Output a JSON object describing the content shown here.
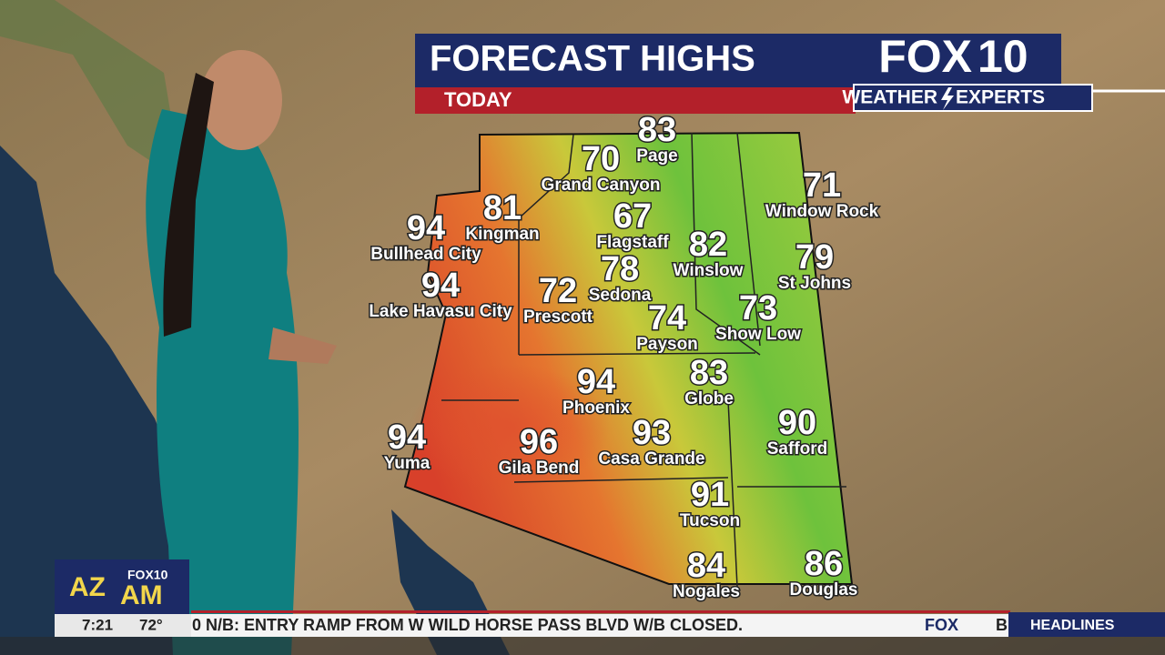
{
  "header": {
    "title": "FORECAST HIGHS",
    "subtitle": "TODAY"
  },
  "logo": {
    "brand": "FOX",
    "channel": "10",
    "tagline_left": "WEATHER",
    "tagline_right": "EXPERTS"
  },
  "cities": [
    {
      "name": "Page",
      "temp": 83
    },
    {
      "name": "Grand Canyon",
      "temp": 70
    },
    {
      "name": "Window Rock",
      "temp": 71
    },
    {
      "name": "Kingman",
      "temp": 81
    },
    {
      "name": "Bullhead City",
      "temp": 94
    },
    {
      "name": "Flagstaff",
      "temp": 67
    },
    {
      "name": "Winslow",
      "temp": 82
    },
    {
      "name": "St Johns",
      "temp": 79
    },
    {
      "name": "Lake Havasu City",
      "temp": 94
    },
    {
      "name": "Prescott",
      "temp": 72
    },
    {
      "name": "Sedona",
      "temp": 78
    },
    {
      "name": "Payson",
      "temp": 74
    },
    {
      "name": "Show Low",
      "temp": 73
    },
    {
      "name": "Globe",
      "temp": 83
    },
    {
      "name": "Phoenix",
      "temp": 94
    },
    {
      "name": "Safford",
      "temp": 90
    },
    {
      "name": "Yuma",
      "temp": 94
    },
    {
      "name": "Gila Bend",
      "temp": 96
    },
    {
      "name": "Casa Grande",
      "temp": 93
    },
    {
      "name": "Tucson",
      "temp": 91
    },
    {
      "name": "Nogales",
      "temp": 84
    },
    {
      "name": "Douglas",
      "temp": 86
    }
  ],
  "show_logo": {
    "left": "AZ",
    "right": "AM",
    "brand": "FOX10"
  },
  "ticker": {
    "time": "7:21",
    "temp": "72°",
    "text": "0 N/B: ENTRY RAMP FROM W WILD HORSE PASS BLVD W/B CLOSED.",
    "brand": "FOX",
    "next": "B",
    "section": "HEADLINES"
  }
}
